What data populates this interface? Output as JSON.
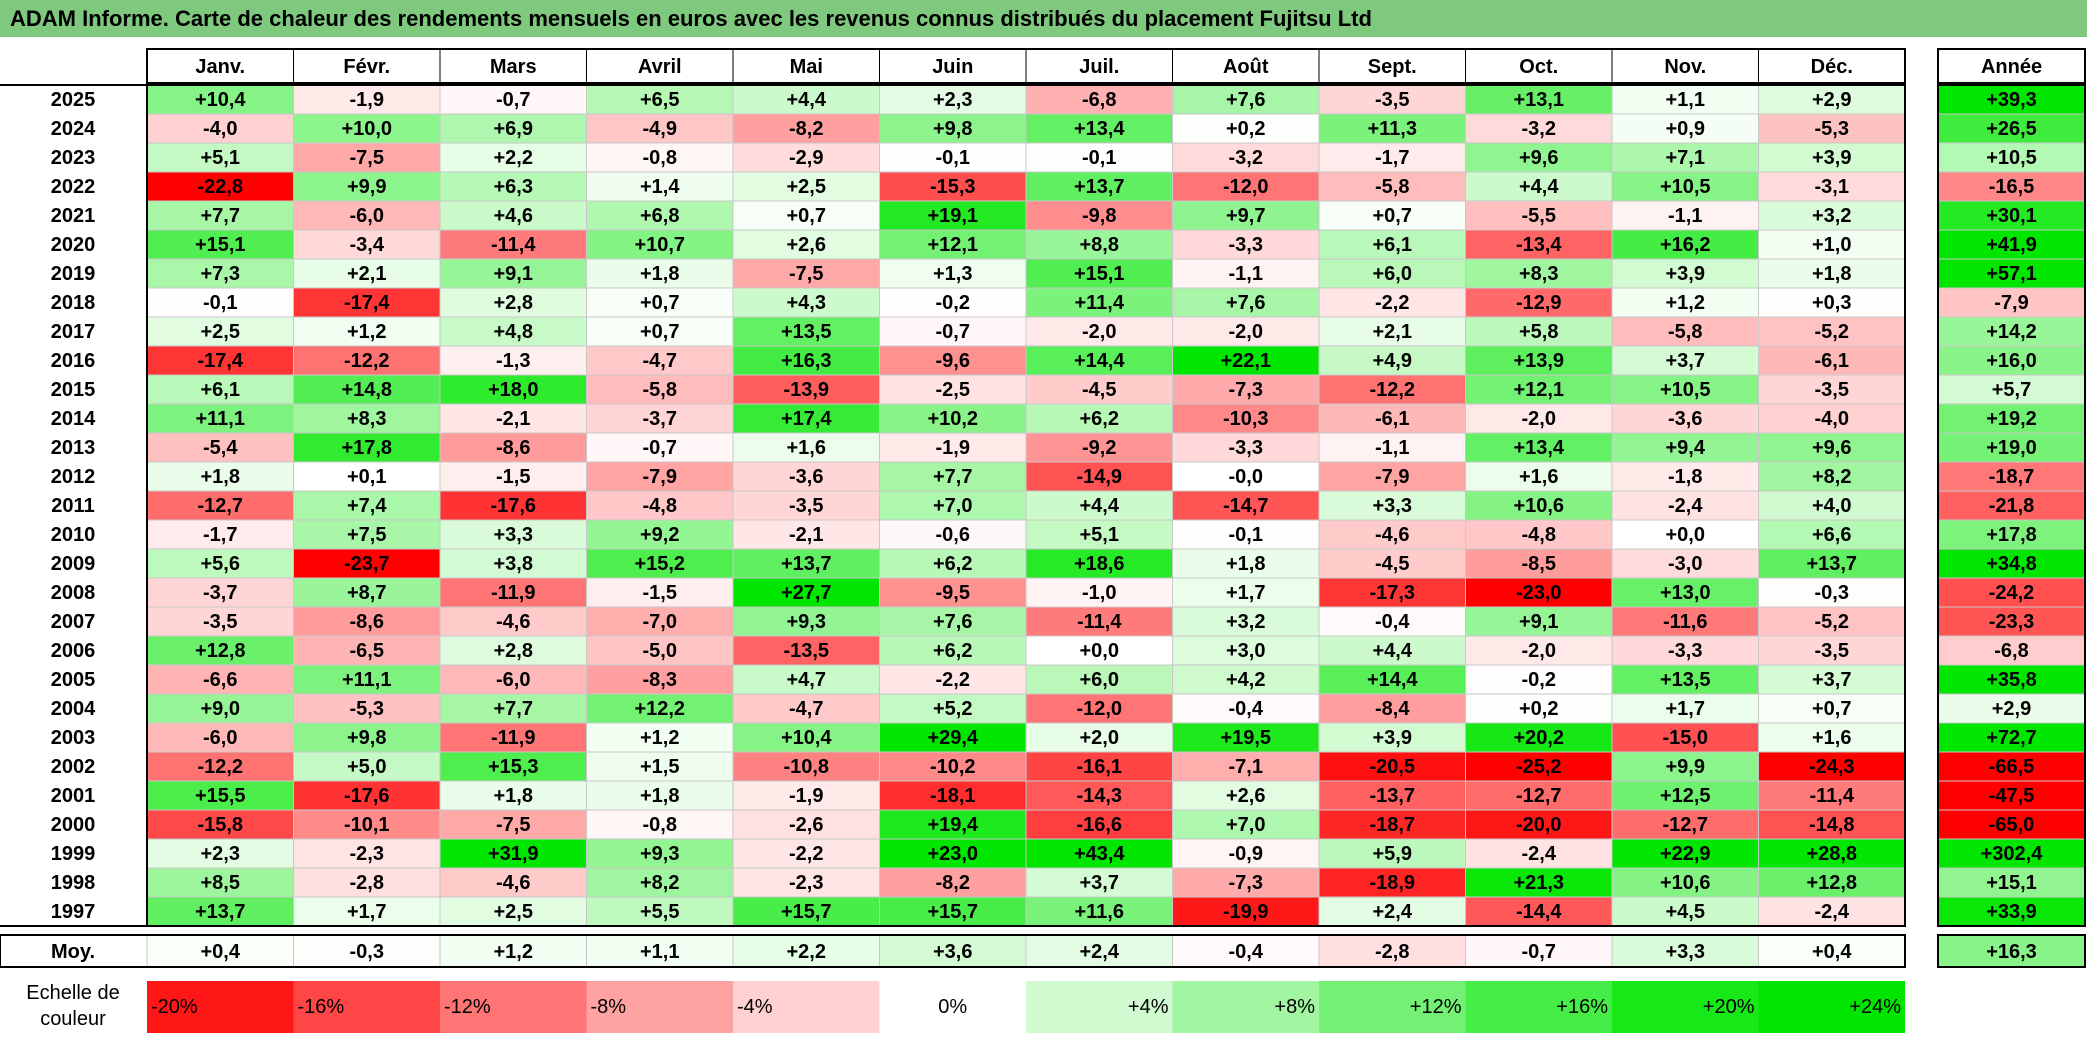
{
  "title": "ADAM Informe. Carte de chaleur des rendements mensuels en euros avec les revenus connus distribués du placement Fujitsu Ltd",
  "chart_data": {
    "type": "heatmap",
    "title": "ADAM Informe. Carte de chaleur des rendements mensuels en euros avec les revenus connus distribués du placement Fujitsu Ltd",
    "columns": [
      "Janv.",
      "Févr.",
      "Mars",
      "Avril",
      "Mai",
      "Juin",
      "Juil.",
      "Août",
      "Sept.",
      "Oct.",
      "Nov.",
      "Déc."
    ],
    "annual_header": "Année",
    "rows": [
      {
        "year": "2025",
        "values": [
          "+10,4",
          "-1,9",
          "-0,7",
          "+6,5",
          "+4,4",
          "+2,3",
          "-6,8",
          "+7,6",
          "-3,5",
          "+13,1",
          "+1,1",
          "+2,9"
        ],
        "annual": "+39,3"
      },
      {
        "year": "2024",
        "values": [
          "-4,0",
          "+10,0",
          "+6,9",
          "-4,9",
          "-8,2",
          "+9,8",
          "+13,4",
          "+0,2",
          "+11,3",
          "-3,2",
          "+0,9",
          "-5,3"
        ],
        "annual": "+26,5"
      },
      {
        "year": "2023",
        "values": [
          "+5,1",
          "-7,5",
          "+2,2",
          "-0,8",
          "-2,9",
          "-0,1",
          "-0,1",
          "-3,2",
          "-1,7",
          "+9,6",
          "+7,1",
          "+3,9"
        ],
        "annual": "+10,5"
      },
      {
        "year": "2022",
        "values": [
          "-22,8",
          "+9,9",
          "+6,3",
          "+1,4",
          "+2,5",
          "-15,3",
          "+13,7",
          "-12,0",
          "-5,8",
          "+4,4",
          "+10,5",
          "-3,1"
        ],
        "annual": "-16,5"
      },
      {
        "year": "2021",
        "values": [
          "+7,7",
          "-6,0",
          "+4,6",
          "+6,8",
          "+0,7",
          "+19,1",
          "-9,8",
          "+9,7",
          "+0,7",
          "-5,5",
          "-1,1",
          "+3,2"
        ],
        "annual": "+30,1"
      },
      {
        "year": "2020",
        "values": [
          "+15,1",
          "-3,4",
          "-11,4",
          "+10,7",
          "+2,6",
          "+12,1",
          "+8,8",
          "-3,3",
          "+6,1",
          "-13,4",
          "+16,2",
          "+1,0"
        ],
        "annual": "+41,9"
      },
      {
        "year": "2019",
        "values": [
          "+7,3",
          "+2,1",
          "+9,1",
          "+1,8",
          "-7,5",
          "+1,3",
          "+15,1",
          "-1,1",
          "+6,0",
          "+8,3",
          "+3,9",
          "+1,8"
        ],
        "annual": "+57,1"
      },
      {
        "year": "2018",
        "values": [
          "-0,1",
          "-17,4",
          "+2,8",
          "+0,7",
          "+4,3",
          "-0,2",
          "+11,4",
          "+7,6",
          "-2,2",
          "-12,9",
          "+1,2",
          "+0,3"
        ],
        "annual": "-7,9"
      },
      {
        "year": "2017",
        "values": [
          "+2,5",
          "+1,2",
          "+4,8",
          "+0,7",
          "+13,5",
          "-0,7",
          "-2,0",
          "-2,0",
          "+2,1",
          "+5,8",
          "-5,8",
          "-5,2"
        ],
        "annual": "+14,2"
      },
      {
        "year": "2016",
        "values": [
          "-17,4",
          "-12,2",
          "-1,3",
          "-4,7",
          "+16,3",
          "-9,6",
          "+14,4",
          "+22,1",
          "+4,9",
          "+13,9",
          "+3,7",
          "-6,1"
        ],
        "annual": "+16,0"
      },
      {
        "year": "2015",
        "values": [
          "+6,1",
          "+14,8",
          "+18,0",
          "-5,8",
          "-13,9",
          "-2,5",
          "-4,5",
          "-7,3",
          "-12,2",
          "+12,1",
          "+10,5",
          "-3,5"
        ],
        "annual": "+5,7"
      },
      {
        "year": "2014",
        "values": [
          "+11,1",
          "+8,3",
          "-2,1",
          "-3,7",
          "+17,4",
          "+10,2",
          "+6,2",
          "-10,3",
          "-6,1",
          "-2,0",
          "-3,6",
          "-4,0"
        ],
        "annual": "+19,2"
      },
      {
        "year": "2013",
        "values": [
          "-5,4",
          "+17,8",
          "-8,6",
          "-0,7",
          "+1,6",
          "-1,9",
          "-9,2",
          "-3,3",
          "-1,1",
          "+13,4",
          "+9,4",
          "+9,6"
        ],
        "annual": "+19,0"
      },
      {
        "year": "2012",
        "values": [
          "+1,8",
          "+0,1",
          "-1,5",
          "-7,9",
          "-3,6",
          "+7,7",
          "-14,9",
          "-0,0",
          "-7,9",
          "+1,6",
          "-1,8",
          "+8,2"
        ],
        "annual": "-18,7"
      },
      {
        "year": "2011",
        "values": [
          "-12,7",
          "+7,4",
          "-17,6",
          "-4,8",
          "-3,5",
          "+7,0",
          "+4,4",
          "-14,7",
          "+3,3",
          "+10,6",
          "-2,4",
          "+4,0"
        ],
        "annual": "-21,8"
      },
      {
        "year": "2010",
        "values": [
          "-1,7",
          "+7,5",
          "+3,3",
          "+9,2",
          "-2,1",
          "-0,6",
          "+5,1",
          "-0,1",
          "-4,6",
          "-4,8",
          "+0,0",
          "+6,6"
        ],
        "annual": "+17,8"
      },
      {
        "year": "2009",
        "values": [
          "+5,6",
          "-23,7",
          "+3,8",
          "+15,2",
          "+13,7",
          "+6,2",
          "+18,6",
          "+1,8",
          "-4,5",
          "-8,5",
          "-3,0",
          "+13,7"
        ],
        "annual": "+34,8"
      },
      {
        "year": "2008",
        "values": [
          "-3,7",
          "+8,7",
          "-11,9",
          "-1,5",
          "+27,7",
          "-9,5",
          "-1,0",
          "+1,7",
          "-17,3",
          "-23,0",
          "+13,0",
          "-0,3"
        ],
        "annual": "-24,2"
      },
      {
        "year": "2007",
        "values": [
          "-3,5",
          "-8,6",
          "-4,6",
          "-7,0",
          "+9,3",
          "+7,6",
          "-11,4",
          "+3,2",
          "-0,4",
          "+9,1",
          "-11,6",
          "-5,2"
        ],
        "annual": "-23,3"
      },
      {
        "year": "2006",
        "values": [
          "+12,8",
          "-6,5",
          "+2,8",
          "-5,0",
          "-13,5",
          "+6,2",
          "+0,0",
          "+3,0",
          "+4,4",
          "-2,0",
          "-3,3",
          "-3,5"
        ],
        "annual": "-6,8"
      },
      {
        "year": "2005",
        "values": [
          "-6,6",
          "+11,1",
          "-6,0",
          "-8,3",
          "+4,7",
          "-2,2",
          "+6,0",
          "+4,2",
          "+14,4",
          "-0,2",
          "+13,5",
          "+3,7"
        ],
        "annual": "+35,8"
      },
      {
        "year": "2004",
        "values": [
          "+9,0",
          "-5,3",
          "+7,7",
          "+12,2",
          "-4,7",
          "+5,2",
          "-12,0",
          "-0,4",
          "-8,4",
          "+0,2",
          "+1,7",
          "+0,7"
        ],
        "annual": "+2,9"
      },
      {
        "year": "2003",
        "values": [
          "-6,0",
          "+9,8",
          "-11,9",
          "+1,2",
          "+10,4",
          "+29,4",
          "+2,0",
          "+19,5",
          "+3,9",
          "+20,2",
          "-15,0",
          "+1,6"
        ],
        "annual": "+72,7"
      },
      {
        "year": "2002",
        "values": [
          "-12,2",
          "+5,0",
          "+15,3",
          "+1,5",
          "-10,8",
          "-10,2",
          "-16,1",
          "-7,1",
          "-20,5",
          "-25,2",
          "+9,9",
          "-24,3"
        ],
        "annual": "-66,5"
      },
      {
        "year": "2001",
        "values": [
          "+15,5",
          "-17,6",
          "+1,8",
          "+1,8",
          "-1,9",
          "-18,1",
          "-14,3",
          "+2,6",
          "-13,7",
          "-12,7",
          "+12,5",
          "-11,4"
        ],
        "annual": "-47,5"
      },
      {
        "year": "2000",
        "values": [
          "-15,8",
          "-10,1",
          "-7,5",
          "-0,8",
          "-2,6",
          "+19,4",
          "-16,6",
          "+7,0",
          "-18,7",
          "-20,0",
          "-12,7",
          "-14,8"
        ],
        "annual": "-65,0"
      },
      {
        "year": "1999",
        "values": [
          "+2,3",
          "-2,3",
          "+31,9",
          "+9,3",
          "-2,2",
          "+23,0",
          "+43,4",
          "-0,9",
          "+5,9",
          "-2,4",
          "+22,9",
          "+28,8"
        ],
        "annual": "+302,4"
      },
      {
        "year": "1998",
        "values": [
          "+8,5",
          "-2,8",
          "-4,6",
          "+8,2",
          "-2,3",
          "-8,2",
          "+3,7",
          "-7,3",
          "-18,9",
          "+21,3",
          "+10,6",
          "+12,8"
        ],
        "annual": "+15,1"
      },
      {
        "year": "1997",
        "values": [
          "+13,7",
          "+1,7",
          "+2,5",
          "+5,5",
          "+15,7",
          "+15,7",
          "+11,6",
          "-19,9",
          "+2,4",
          "-14,4",
          "+4,5",
          "-2,4"
        ],
        "annual": "+33,9"
      }
    ],
    "average": {
      "label": "Moy.",
      "values": [
        "+0,4",
        "-0,3",
        "+1,2",
        "+1,1",
        "+2,2",
        "+3,6",
        "+2,4",
        "-0,4",
        "-2,8",
        "-0,7",
        "+3,3",
        "+0,4"
      ],
      "annual": "+16,3"
    },
    "scale": {
      "label_lines": [
        "Echelle de",
        "couleur"
      ],
      "labels": [
        "-20%",
        "-16%",
        "-12%",
        "-8%",
        "-4%",
        "0%",
        "+4%",
        "+8%",
        "+12%",
        "+16%",
        "+20%",
        "+24%"
      ],
      "values": [
        -20,
        -16,
        -12,
        -8,
        -4,
        0,
        4,
        8,
        12,
        16,
        20,
        24
      ]
    },
    "colors": {
      "negative_strong": "#ff0000",
      "neutral": "#ffffff",
      "positive_strong": "#00e600",
      "title_bar": "#7ec97e"
    }
  }
}
